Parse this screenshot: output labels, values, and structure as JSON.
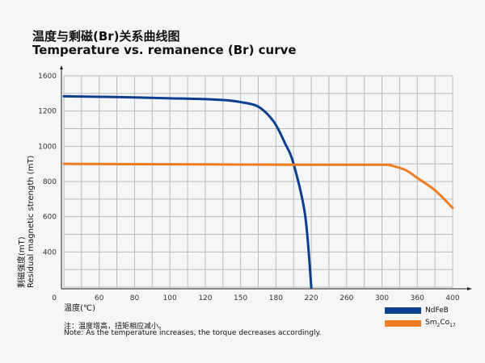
{
  "chart_data": {
    "type": "line",
    "title": "温度与剩磁(Br)关系曲线图",
    "subtitle": "Temperature vs. remanence (Br) curve",
    "xlabel": "温度(℃)",
    "ylabel_cn": "剩磁强度(mT)",
    "ylabel": "Residual magnetic strength (mT)",
    "origin_label": "0",
    "x_ticks": [
      60,
      80,
      100,
      120,
      150,
      180,
      220,
      260,
      300,
      360,
      400
    ],
    "y_ticks": [
      1600,
      1200,
      1000,
      800,
      600,
      400
    ],
    "grid": true,
    "legend_position": "bottom-right",
    "series": [
      {
        "name": "NdFeB",
        "color": "#0d3f8f",
        "x": [
          40,
          60,
          80,
          100,
          120,
          140,
          150,
          165,
          178,
          190,
          200,
          213,
          220
        ],
        "y": [
          1367,
          1362,
          1355,
          1345,
          1335,
          1320,
          1302,
          1250,
          1141,
          1020,
          900,
          610,
          200
        ]
      },
      {
        "name": "Sm2Co17",
        "name_main": "Sm",
        "sub1": "2",
        "name_mid": "Co",
        "sub2": "17",
        "color": "#ef7d22",
        "x": [
          40,
          100,
          200,
          300,
          314,
          340,
          360,
          380,
          400
        ],
        "y": [
          900,
          898,
          895,
          895,
          892,
          865,
          820,
          750,
          650
        ]
      }
    ]
  },
  "notes": {
    "cn": "注：温度增高，扭矩相应减小。",
    "en": "Note: As the temperature increases, the torque decreases accordingly."
  }
}
